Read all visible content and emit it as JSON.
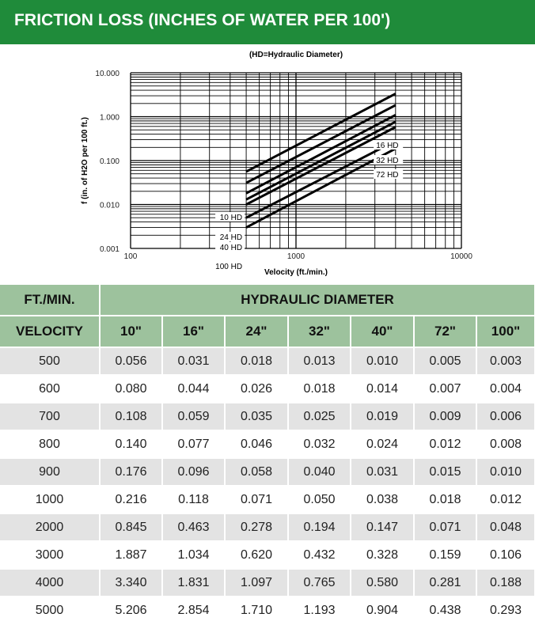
{
  "header": {
    "title": "FRICTION LOSS (INCHES OF WATER PER 100')"
  },
  "colors": {
    "header_green": "#1f8b3a",
    "table_green": "#9dc29d",
    "row_gray": "#e3e3e3"
  },
  "chart_data": {
    "type": "line",
    "title": "(HD=Hydraulic Diameter)",
    "xlabel": "Velocity (ft./min.)",
    "ylabel": "f (in. of H2O per 100 ft.)",
    "x_scale": "log",
    "y_scale": "log",
    "xlim": [
      100,
      10000
    ],
    "ylim": [
      0.001,
      10
    ],
    "x_ticks": [
      "100",
      "1000",
      "10000"
    ],
    "y_ticks": [
      "10.000",
      "1.000",
      "0.100",
      "0.010",
      "0.001"
    ],
    "grid": true,
    "series": [
      {
        "name": "10 HD",
        "x": [
          500,
          4000
        ],
        "y": [
          0.056,
          3.34
        ]
      },
      {
        "name": "16 HD",
        "x": [
          500,
          4000
        ],
        "y": [
          0.031,
          1.831
        ]
      },
      {
        "name": "24 HD",
        "x": [
          500,
          4000
        ],
        "y": [
          0.018,
          1.097
        ]
      },
      {
        "name": "32 HD",
        "x": [
          500,
          4000
        ],
        "y": [
          0.013,
          0.765
        ]
      },
      {
        "name": "40 HD",
        "x": [
          500,
          4000
        ],
        "y": [
          0.01,
          0.58
        ]
      },
      {
        "name": "72 HD",
        "x": [
          500,
          4000
        ],
        "y": [
          0.005,
          0.281
        ]
      },
      {
        "name": "100 HD",
        "x": [
          500,
          4000
        ],
        "y": [
          0.003,
          0.188
        ]
      }
    ]
  },
  "table": {
    "col1_header_top": "FT./MIN.",
    "group_header": "HYDRAULIC DIAMETER",
    "col1_header_bottom": "VELOCITY",
    "columns": [
      "10\"",
      "16\"",
      "24\"",
      "32\"",
      "40\"",
      "72\"",
      "100\""
    ],
    "rows": [
      [
        "500",
        "0.056",
        "0.031",
        "0.018",
        "0.013",
        "0.010",
        "0.005",
        "0.003"
      ],
      [
        "600",
        "0.080",
        "0.044",
        "0.026",
        "0.018",
        "0.014",
        "0.007",
        "0.004"
      ],
      [
        "700",
        "0.108",
        "0.059",
        "0.035",
        "0.025",
        "0.019",
        "0.009",
        "0.006"
      ],
      [
        "800",
        "0.140",
        "0.077",
        "0.046",
        "0.032",
        "0.024",
        "0.012",
        "0.008"
      ],
      [
        "900",
        "0.176",
        "0.096",
        "0.058",
        "0.040",
        "0.031",
        "0.015",
        "0.010"
      ],
      [
        "1000",
        "0.216",
        "0.118",
        "0.071",
        "0.050",
        "0.038",
        "0.018",
        "0.012"
      ],
      [
        "2000",
        "0.845",
        "0.463",
        "0.278",
        "0.194",
        "0.147",
        "0.071",
        "0.048"
      ],
      [
        "3000",
        "1.887",
        "1.034",
        "0.620",
        "0.432",
        "0.328",
        "0.159",
        "0.106"
      ],
      [
        "4000",
        "3.340",
        "1.831",
        "1.097",
        "0.765",
        "0.580",
        "0.281",
        "0.188"
      ],
      [
        "5000",
        "5.206",
        "2.854",
        "1.710",
        "1.193",
        "0.904",
        "0.438",
        "0.293"
      ]
    ]
  }
}
